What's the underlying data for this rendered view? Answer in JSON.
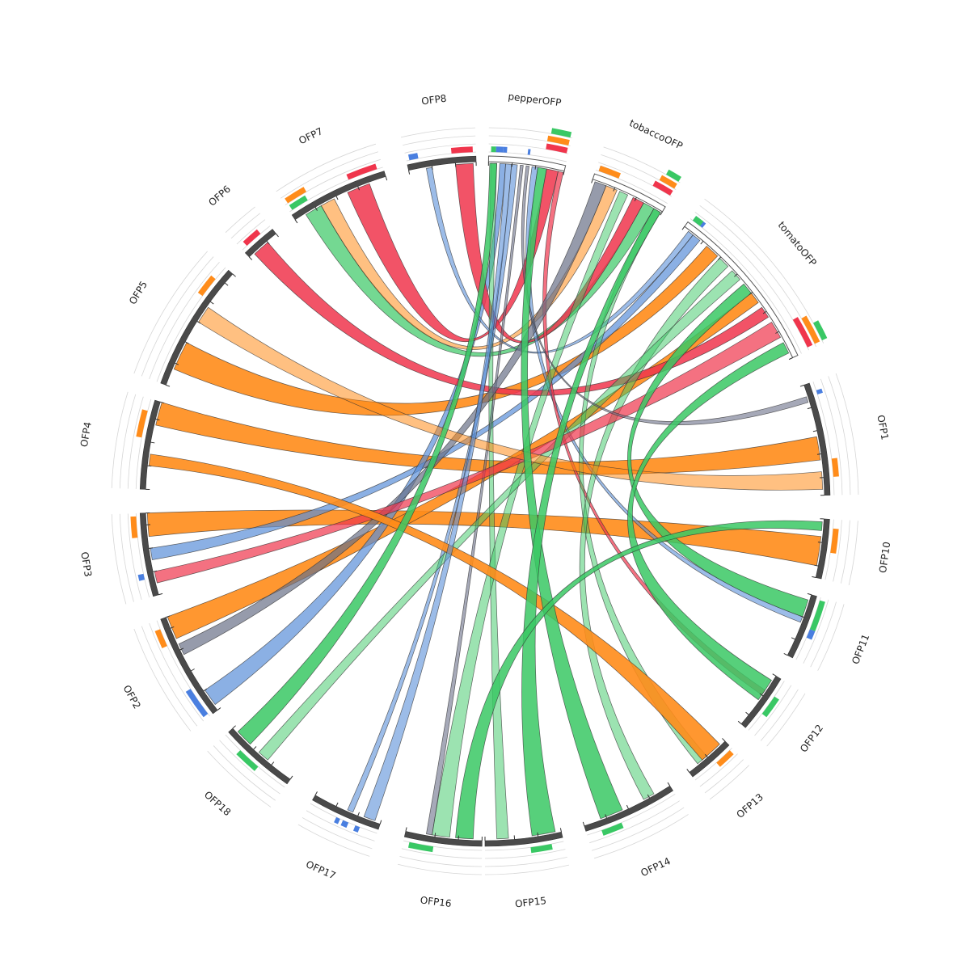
{
  "chart_data": {
    "type": "chord",
    "segments": [
      {
        "id": "pepperOFP",
        "label": "pepperOFP",
        "style": "outline",
        "start_deg": 0.6,
        "end_deg": 13.5
      },
      {
        "id": "tobaccoOFP",
        "label": "tobaccoOFP",
        "style": "outline",
        "start_deg": 18.5,
        "end_deg": 31.5
      },
      {
        "id": "tomatoOFP",
        "label": "tomatoOFP",
        "style": "outline",
        "start_deg": 36,
        "end_deg": 65
      },
      {
        "id": "OFP1",
        "label": "OFP1",
        "style": "solid",
        "start_deg": 70,
        "end_deg": 89
      },
      {
        "id": "OFP10",
        "label": "OFP10",
        "style": "solid",
        "start_deg": 93,
        "end_deg": 103
      },
      {
        "id": "OFP11",
        "label": "OFP11",
        "style": "solid",
        "start_deg": 106,
        "end_deg": 117
      },
      {
        "id": "OFP12",
        "label": "OFP12",
        "style": "solid",
        "start_deg": 121,
        "end_deg": 131
      },
      {
        "id": "OFP13",
        "label": "OFP13",
        "style": "solid",
        "start_deg": 135,
        "end_deg": 143
      },
      {
        "id": "OFP14",
        "label": "OFP14",
        "style": "solid",
        "start_deg": 147,
        "end_deg": 163
      },
      {
        "id": "OFP15",
        "label": "OFP15",
        "style": "solid",
        "start_deg": 167,
        "end_deg": 180
      },
      {
        "id": "OFP16",
        "label": "OFP16",
        "style": "solid",
        "start_deg": 180.5,
        "end_deg": 193.5
      },
      {
        "id": "OFP17",
        "label": "OFP17",
        "style": "solid",
        "start_deg": 198,
        "end_deg": 210
      },
      {
        "id": "OFP18",
        "label": "OFP18",
        "style": "solid",
        "start_deg": 215,
        "end_deg": 228
      },
      {
        "id": "OFP2",
        "label": "OFP2",
        "style": "solid",
        "start_deg": 232,
        "end_deg": 250
      },
      {
        "id": "OFP3",
        "label": "OFP3",
        "style": "solid",
        "start_deg": 254,
        "end_deg": 268
      },
      {
        "id": "OFP4",
        "label": "OFP4",
        "style": "solid",
        "start_deg": 272,
        "end_deg": 287
      },
      {
        "id": "OFP5",
        "label": "OFP5",
        "style": "solid",
        "start_deg": 290,
        "end_deg": 312
      },
      {
        "id": "OFP6",
        "label": "OFP6",
        "style": "solid",
        "start_deg": 316,
        "end_deg": 322
      },
      {
        "id": "OFP7",
        "label": "OFP7",
        "style": "solid",
        "start_deg": 326,
        "end_deg": 343
      },
      {
        "id": "OFP8",
        "label": "OFP8",
        "style": "solid",
        "start_deg": 347,
        "end_deg": 358.5
      }
    ],
    "link_colors": {
      "orange": "#ff8c1a",
      "red": "#f0354c",
      "green": "#39c864",
      "blue": "#5a8fd8",
      "gray": "#6a7088"
    },
    "links": [
      {
        "source": "OFP5",
        "source_span": [
          293,
          298
        ],
        "target": "tomatoOFP",
        "target_span": [
          41,
          43.5
        ],
        "color": "orange",
        "opacity": 0.9
      },
      {
        "source": "OFP4",
        "source_span": [
          283,
          287
        ],
        "target": "OFP1",
        "target_span": [
          79,
          83
        ],
        "color": "orange",
        "opacity": 0.9
      },
      {
        "source": "OFP3",
        "source_span": [
          264,
          268
        ],
        "target": "OFP10",
        "target_span": [
          96,
          101
        ],
        "color": "orange",
        "opacity": 0.9
      },
      {
        "source": "OFP3",
        "source_span": [
          260,
          262
        ],
        "target": "tomatoOFP",
        "target_span": [
          38,
          39.5
        ],
        "color": "blue",
        "opacity": 0.7
      },
      {
        "source": "OFP2",
        "source_span": [
          246,
          250
        ],
        "target": "tomatoOFP",
        "target_span": [
          52,
          54
        ],
        "color": "orange",
        "opacity": 0.9
      },
      {
        "source": "OFP2",
        "source_span": [
          233,
          236
        ],
        "target": "pepperOFP",
        "target_span": [
          2.5,
          3.5
        ],
        "color": "blue",
        "opacity": 0.7
      },
      {
        "source": "OFP6",
        "source_span": [
          317,
          320
        ],
        "target": "tomatoOFP",
        "target_span": [
          55,
          57
        ],
        "color": "red",
        "opacity": 0.85
      },
      {
        "source": "OFP7",
        "source_span": [
          328,
          331
        ],
        "target": "tobaccoOFP",
        "target_span": [
          28,
          30
        ],
        "color": "green",
        "opacity": 0.7
      },
      {
        "source": "OFP7",
        "source_span": [
          331,
          333.5
        ],
        "target": "tobaccoOFP",
        "target_span": [
          21,
          23
        ],
        "color": "orange",
        "opacity": 0.55
      },
      {
        "source": "OFP7",
        "source_span": [
          336,
          340
        ],
        "target": "pepperOFP",
        "target_span": [
          10.5,
          12.5
        ],
        "color": "red",
        "opacity": 0.85
      },
      {
        "source": "OFP8",
        "source_span": [
          350,
          351
        ],
        "target": "tomatoOFP",
        "target_span": [
          37,
          38
        ],
        "color": "blue",
        "opacity": 0.6
      },
      {
        "source": "OFP8",
        "source_span": [
          355,
          358
        ],
        "target": "tobaccoOFP",
        "target_span": [
          26,
          28
        ],
        "color": "red",
        "opacity": 0.85
      },
      {
        "source": "pepperOFP",
        "source_span": [
          1,
          2
        ],
        "target": "OFP15",
        "target_span": [
          176,
          178
        ],
        "color": "green",
        "opacity": 0.5
      },
      {
        "source": "pepperOFP",
        "source_span": [
          4.5,
          5.5
        ],
        "target": "OFP17",
        "target_span": [
          203,
          204
        ],
        "color": "blue",
        "opacity": 0.6
      },
      {
        "source": "pepperOFP",
        "source_span": [
          6,
          6.5
        ],
        "target": "OFP16",
        "target_span": [
          189,
          190
        ],
        "color": "gray",
        "opacity": 0.6
      },
      {
        "source": "pepperOFP",
        "source_span": [
          8,
          9
        ],
        "target": "OFP11",
        "target_span": [
          110,
          111
        ],
        "color": "blue",
        "opacity": 0.6
      },
      {
        "source": "pepperOFP",
        "source_span": [
          12.5,
          13.4
        ],
        "target": "OFP12",
        "target_span": [
          124,
          125
        ],
        "color": "red",
        "opacity": 0.7
      },
      {
        "source": "tobaccoOFP",
        "source_span": [
          19,
          21
        ],
        "target": "OFP2",
        "target_span": [
          243,
          245
        ],
        "color": "gray",
        "opacity": 0.7
      },
      {
        "source": "tobaccoOFP",
        "source_span": [
          23.5,
          25
        ],
        "target": "OFP16",
        "target_span": [
          186,
          189
        ],
        "color": "green",
        "opacity": 0.5
      },
      {
        "source": "tobaccoOFP",
        "source_span": [
          30,
          31.3
        ],
        "target": "OFP13",
        "target_span": [
          139,
          141
        ],
        "color": "green",
        "opacity": 0.5
      },
      {
        "source": "tomatoOFP",
        "source_span": [
          44,
          46
        ],
        "target": "OFP14",
        "target_span": [
          150,
          152
        ],
        "color": "green",
        "opacity": 0.5
      },
      {
        "source": "tomatoOFP",
        "source_span": [
          47,
          49
        ],
        "target": "OFP18",
        "target_span": [
          220,
          222
        ],
        "color": "green",
        "opacity": 0.5
      },
      {
        "source": "tomatoOFP",
        "source_span": [
          58,
          61
        ],
        "target": "OFP3",
        "target_span": [
          256,
          258
        ],
        "color": "red",
        "opacity": 0.7
      },
      {
        "source": "OFP1",
        "source_span": [
          72,
          73
        ],
        "target": "pepperOFP",
        "target_span": [
          7,
          7.5
        ],
        "color": "gray",
        "opacity": 0.6
      },
      {
        "source": "OFP1",
        "source_span": [
          85,
          88
        ],
        "target": "OFP5",
        "target_span": [
          302,
          305
        ],
        "color": "orange",
        "opacity": 0.55
      },
      {
        "source": "OFP11",
        "source_span": [
          107,
          110
        ],
        "target": "tomatoOFP",
        "target_span": [
          50,
          52
        ],
        "color": "green",
        "opacity": 0.85
      },
      {
        "source": "OFP12",
        "source_span": [
          122,
          126
        ],
        "target": "tomatoOFP",
        "target_span": [
          62,
          64
        ],
        "color": "green",
        "opacity": 0.85
      },
      {
        "source": "OFP13",
        "source_span": [
          136,
          140
        ],
        "target": "OFP4",
        "target_span": [
          276,
          278
        ],
        "color": "orange",
        "opacity": 0.9
      },
      {
        "source": "OFP14",
        "source_span": [
          156,
          160
        ],
        "target": "pepperOFP",
        "target_span": [
          9,
          10.5
        ],
        "color": "green",
        "opacity": 0.85
      },
      {
        "source": "OFP15",
        "source_span": [
          168,
          172
        ],
        "target": "tobaccoOFP",
        "target_span": [
          30,
          31.3
        ],
        "color": "green",
        "opacity": 0.85
      },
      {
        "source": "OFP16",
        "source_span": [
          182,
          185
        ],
        "target": "OFP10",
        "target_span": [
          93.5,
          95
        ],
        "color": "green",
        "opacity": 0.85
      },
      {
        "source": "OFP17",
        "source_span": [
          199,
          201
        ],
        "target": "pepperOFP",
        "target_span": [
          3.5,
          4.5
        ],
        "color": "blue",
        "opacity": 0.6
      },
      {
        "source": "OFP18",
        "source_span": [
          224,
          227
        ],
        "target": "pepperOFP",
        "target_span": [
          0.8,
          2
        ],
        "color": "green",
        "opacity": 0.85
      }
    ],
    "tracks": [
      {
        "segment": "pepperOFP",
        "bars": [
          {
            "start_deg": 1.0,
            "end_deg": 1.8,
            "color": "#39c864",
            "level": 1
          },
          {
            "start_deg": 1.8,
            "end_deg": 3.0,
            "color": "#4a7fe0",
            "level": 1
          },
          {
            "start_deg": 3.0,
            "end_deg": 3.6,
            "color": "#4a7fe0",
            "level": 1
          },
          {
            "start_deg": 7.0,
            "end_deg": 7.4,
            "color": "#4a7fe0",
            "level": 1
          },
          {
            "start_deg": 9.8,
            "end_deg": 13.2,
            "color": "#f0354c",
            "level": 2
          },
          {
            "start_deg": 9.8,
            "end_deg": 13.2,
            "color": "#ff8c1a",
            "level": 3
          },
          {
            "start_deg": 10.2,
            "end_deg": 13.2,
            "color": "#39c864",
            "level": 4
          }
        ]
      },
      {
        "segment": "tobaccoOFP",
        "bars": [
          {
            "start_deg": 19.0,
            "end_deg": 21.0,
            "color": "#4a7fe0",
            "level": 1
          },
          {
            "start_deg": 19.0,
            "end_deg": 22.5,
            "color": "#ff8c1a",
            "level": 1
          },
          {
            "start_deg": 28.0,
            "end_deg": 31.2,
            "color": "#f0354c",
            "level": 2
          },
          {
            "start_deg": 28.5,
            "end_deg": 31.2,
            "color": "#ff8c1a",
            "level": 3
          },
          {
            "start_deg": 29.0,
            "end_deg": 31.2,
            "color": "#39c864",
            "level": 4
          }
        ]
      },
      {
        "segment": "tomatoOFP",
        "bars": [
          {
            "start_deg": 36.5,
            "end_deg": 38.5,
            "color": "#4a7fe0",
            "level": 1
          },
          {
            "start_deg": 36.5,
            "end_deg": 38.0,
            "color": "#39c864",
            "level": 1
          },
          {
            "start_deg": 59.5,
            "end_deg": 64.5,
            "color": "#f0354c",
            "level": 2
          },
          {
            "start_deg": 60.0,
            "end_deg": 64.5,
            "color": "#ff8c1a",
            "level": 3
          },
          {
            "start_deg": 61.5,
            "end_deg": 64.5,
            "color": "#39c864",
            "level": 4
          }
        ]
      },
      {
        "segment": "OFP1",
        "bars": [
          {
            "start_deg": 71.5,
            "end_deg": 72.2,
            "color": "#4a7fe0",
            "level": 1
          },
          {
            "start_deg": 83.0,
            "end_deg": 86.0,
            "color": "#ff8c1a",
            "level": 1
          }
        ]
      },
      {
        "segment": "OFP10",
        "bars": [
          {
            "start_deg": 94.5,
            "end_deg": 98.5,
            "color": "#ff8c1a",
            "level": 1
          }
        ]
      },
      {
        "segment": "OFP11",
        "bars": [
          {
            "start_deg": 106.5,
            "end_deg": 111.5,
            "color": "#39c864",
            "level": 1
          },
          {
            "start_deg": 111.5,
            "end_deg": 113.0,
            "color": "#4a7fe0",
            "level": 1
          }
        ]
      },
      {
        "segment": "OFP12",
        "bars": [
          {
            "start_deg": 124.0,
            "end_deg": 127.5,
            "color": "#39c864",
            "level": 1
          }
        ]
      },
      {
        "segment": "OFP13",
        "bars": [
          {
            "start_deg": 135.5,
            "end_deg": 138.5,
            "color": "#ff8c1a",
            "level": 1
          }
        ]
      },
      {
        "segment": "OFP14",
        "bars": [
          {
            "start_deg": 157.0,
            "end_deg": 160.5,
            "color": "#39c864",
            "level": 1
          }
        ]
      },
      {
        "segment": "OFP15",
        "bars": [
          {
            "start_deg": 169.0,
            "end_deg": 172.5,
            "color": "#39c864",
            "level": 1
          }
        ]
      },
      {
        "segment": "OFP16",
        "bars": [
          {
            "start_deg": 188.5,
            "end_deg": 192.5,
            "color": "#39c864",
            "level": 1
          }
        ]
      },
      {
        "segment": "OFP17",
        "bars": [
          {
            "start_deg": 201.0,
            "end_deg": 201.8,
            "color": "#4a7fe0",
            "level": 1
          },
          {
            "start_deg": 203.0,
            "end_deg": 204.0,
            "color": "#4a7fe0",
            "level": 1
          },
          {
            "start_deg": 204.5,
            "end_deg": 205.2,
            "color": "#4a7fe0",
            "level": 1
          }
        ]
      },
      {
        "segment": "OFP18",
        "bars": [
          {
            "start_deg": 220.5,
            "end_deg": 224.5,
            "color": "#39c864",
            "level": 1
          }
        ]
      },
      {
        "segment": "OFP2",
        "bars": [
          {
            "start_deg": 232.5,
            "end_deg": 237.5,
            "color": "#4a7fe0",
            "level": 1
          },
          {
            "start_deg": 245.5,
            "end_deg": 248.5,
            "color": "#ff8c1a",
            "level": 1
          }
        ]
      },
      {
        "segment": "OFP3",
        "bars": [
          {
            "start_deg": 257.0,
            "end_deg": 258.0,
            "color": "#4a7fe0",
            "level": 1
          },
          {
            "start_deg": 264.0,
            "end_deg": 267.5,
            "color": "#ff8c1a",
            "level": 1
          }
        ]
      },
      {
        "segment": "OFP4",
        "bars": [
          {
            "start_deg": 280.5,
            "end_deg": 285.0,
            "color": "#ff8c1a",
            "level": 1
          }
        ]
      },
      {
        "segment": "OFP5",
        "bars": [
          {
            "start_deg": 306.0,
            "end_deg": 309.5,
            "color": "#ff8c1a",
            "level": 1
          }
        ]
      },
      {
        "segment": "OFP6",
        "bars": [
          {
            "start_deg": 317.0,
            "end_deg": 320.0,
            "color": "#f0354c",
            "level": 1
          }
        ]
      },
      {
        "segment": "OFP7",
        "bars": [
          {
            "start_deg": 326.5,
            "end_deg": 329.5,
            "color": "#39c864",
            "level": 1
          },
          {
            "start_deg": 326.5,
            "end_deg": 330.0,
            "color": "#ff8c1a",
            "level": 2
          },
          {
            "start_deg": 337.0,
            "end_deg": 342.0,
            "color": "#f0354c",
            "level": 1
          }
        ]
      },
      {
        "segment": "OFP8",
        "bars": [
          {
            "start_deg": 347.5,
            "end_deg": 349.0,
            "color": "#4a7fe0",
            "level": 1
          },
          {
            "start_deg": 354.5,
            "end_deg": 358.0,
            "color": "#f0354c",
            "level": 1
          }
        ]
      }
    ]
  }
}
